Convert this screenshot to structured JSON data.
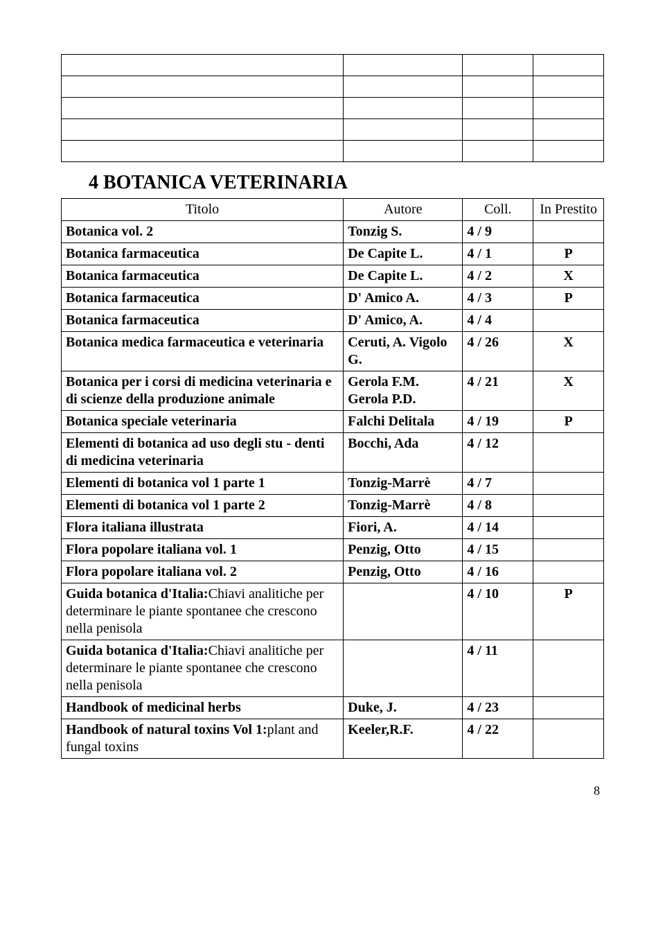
{
  "empty_table": {
    "rows": 5,
    "col_widths_pct": [
      52,
      22,
      13,
      13
    ]
  },
  "heading": "4  BOTANICA VETERINARIA",
  "headers": {
    "titolo": "Titolo",
    "autore": "Autore",
    "coll": "Coll.",
    "status": "In Prestito"
  },
  "rows": [
    {
      "titolo": "Botanica    vol. 2",
      "autore": "Tonzig S.",
      "coll": "4 /   9",
      "status": ""
    },
    {
      "titolo": "Botanica farmaceutica",
      "autore": "De Capite L.",
      "coll": "4 /   1",
      "status": "P"
    },
    {
      "titolo": "Botanica farmaceutica",
      "autore": "De Capite L.",
      "coll": "4 /   2",
      "status": "X"
    },
    {
      "titolo": "Botanica farmaceutica",
      "autore": "D' Amico A.",
      "coll": "4 /   3",
      "status": "P"
    },
    {
      "titolo": "Botanica farmaceutica",
      "autore": "D' Amico, A.",
      "coll": "4 /   4",
      "status": ""
    },
    {
      "titolo": "Botanica medica farmaceutica e veterinaria",
      "autore": "Ceruti, A. Vigolo G.",
      "coll": "4 /  26",
      "status": "X"
    },
    {
      "titolo": "Botanica per i corsi di medicina veterinaria e di scienze della produzione animale",
      "autore": "Gerola F.M. Gerola P.D.",
      "coll": "4 /  21",
      "status": "X"
    },
    {
      "titolo": "Botanica speciale veterinaria",
      "autore": "Falchi Delitala",
      "coll": "4 /  19",
      "status": "P"
    },
    {
      "titolo": "Elementi di botanica ad uso degli stu - denti di medicina veterinaria",
      "autore": "Bocchi, Ada",
      "coll": "4 /  12",
      "status": ""
    },
    {
      "titolo": "Elementi di botanica vol 1   parte  1",
      "autore": "Tonzig-Marrè",
      "coll": "4 /   7",
      "status": ""
    },
    {
      "titolo": "Elementi di botanica vol 1   parte  2",
      "autore": "Tonzig-Marrè",
      "coll": "4 /   8",
      "status": ""
    },
    {
      "titolo": "Flora italiana illustrata",
      "autore": "Fiori, A.",
      "coll": "4 /  14",
      "status": ""
    },
    {
      "titolo": "Flora popolare italiana   vol. 1",
      "autore": "Penzig, Otto",
      "coll": "4 /  15",
      "status": ""
    },
    {
      "titolo": "Flora popolare italiana   vol. 2",
      "autore": "Penzig, Otto",
      "coll": "4 /  16",
      "status": ""
    },
    {
      "titolo_bold": "Guida botanica d'Italia:",
      "titolo_light": "Chiavi analitiche per determinare le piante spontanee che crescono nella penisola",
      "autore": "",
      "coll": "4 /  10",
      "status": "P"
    },
    {
      "titolo_bold": "Guida botanica d'Italia:",
      "titolo_light": "Chiavi analitiche per determinare le piante spontanee che crescono nella penisola",
      "autore": "",
      "coll": "4 /  11",
      "status": ""
    },
    {
      "titolo": "Handbook of medicinal herbs",
      "autore": "Duke, J.",
      "coll": "4 /  23",
      "status": ""
    },
    {
      "titolo_bold": "Handbook of natural toxins Vol 1:",
      "titolo_light": "plant and fungal toxins",
      "autore": "Keeler,R.F.",
      "coll": "4 /  22",
      "status": ""
    }
  ],
  "page_number": "8"
}
